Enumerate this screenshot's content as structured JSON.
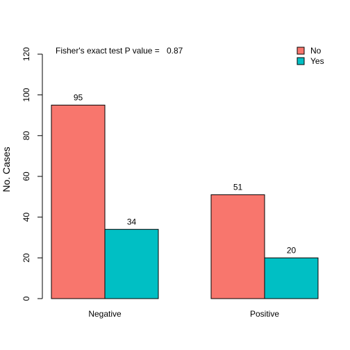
{
  "chart_data": {
    "type": "bar",
    "title": "",
    "xlabel": "",
    "ylabel": "No. Cases",
    "ylim": [
      0,
      120
    ],
    "yticks": [
      0,
      20,
      40,
      60,
      80,
      100,
      120
    ],
    "grid": false,
    "categories": [
      "Negative",
      "Positive"
    ],
    "series": [
      {
        "name": "No",
        "values": [
          95,
          51
        ],
        "color": "#F8766D"
      },
      {
        "name": "Yes",
        "values": [
          34,
          20
        ],
        "color": "#00BFC4"
      }
    ],
    "data_labels": true,
    "legend_position": "top-right",
    "annotation": {
      "label": "Fisher's exact test P value =",
      "value": "0.87"
    }
  }
}
